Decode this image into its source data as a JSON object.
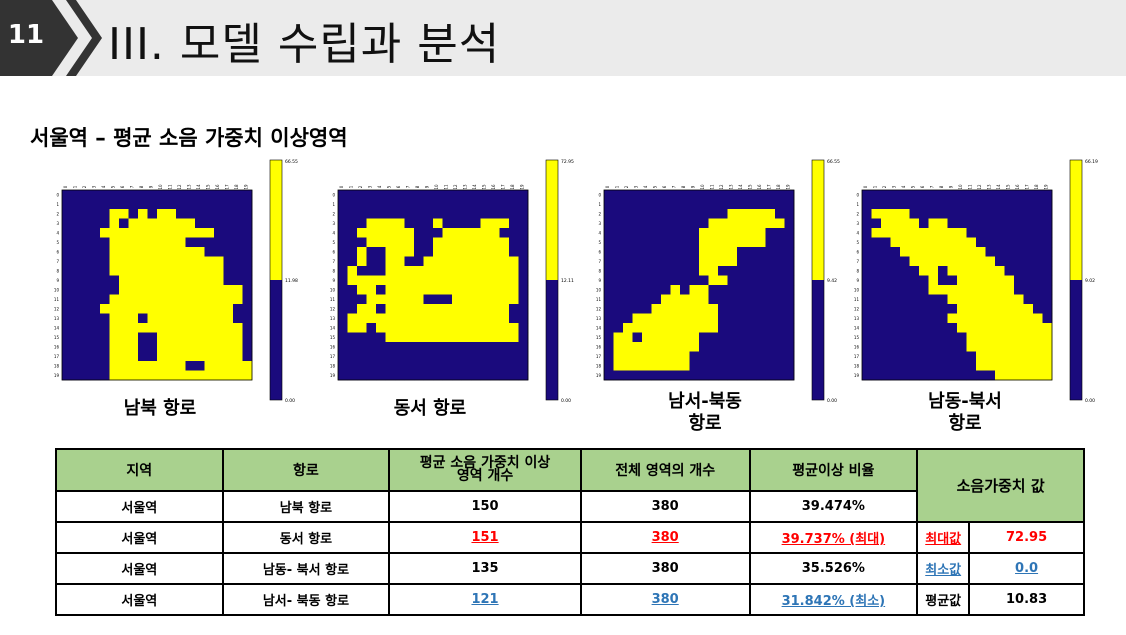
{
  "header": {
    "slide_number": "11",
    "title": "III. 모델 수립과 분석"
  },
  "section_title": "서울역 – 평균 소음 가중치 이상영역",
  "colors": {
    "high": "#ffff00",
    "low": "#1a0a7d",
    "header_fill": "#a9d18e",
    "max_color": "#ff0000",
    "min_color": "#2e75b6"
  },
  "heatmaps": [
    {
      "label": "남북 항로",
      "cb_max": "66.55",
      "cb_mid": "11.98",
      "cb_min": "0.00",
      "mid_frac": 0.5,
      "rows": [
        "00000000000000000000",
        "00000000000000000000",
        "00000110101100000000",
        "00000101111111000000",
        "00001111111111110000",
        "00000111111110000000",
        "00000111111111100000",
        "00000111111111111000",
        "00000111111111111000",
        "00000011111111111000",
        "00000011111111111110",
        "00000111111111111110",
        "00001111111111111100",
        "00000111011111111100",
        "00000111111111111110",
        "00000111001111111110",
        "00000111001111111110",
        "00000111001111111110",
        "00000111111110011111",
        "00000111111111111111"
      ]
    },
    {
      "label": "동서 항로",
      "cb_max": "72.95",
      "cb_mid": "12.11",
      "cb_min": "0.00",
      "mid_frac": 0.5,
      "rows": [
        "00000000000000000000",
        "00000000000000000000",
        "00000000000000000000",
        "00011110001000011100",
        "00111111000111111000",
        "00011111001111111100",
        "00100111001111111100",
        "00100110011111111110",
        "01000111111111111110",
        "01111111111111111110",
        "00110111111111111110",
        "00011111100011111110",
        "00110111111111111100",
        "01111111111111111100",
        "01101111111111111110",
        "00000111111111111110",
        "00000000000000000000",
        "00000000000000000000",
        "00000000000000000000",
        "00000000000000000000"
      ]
    },
    {
      "label": "남서-북동\n항로",
      "cb_max": "66.55",
      "cb_mid": "9.42",
      "cb_min": "0.00",
      "mid_frac": 0.5,
      "rows": [
        "00000000000000000000",
        "00000000000000000000",
        "00000000000001111100",
        "00000000000111111110",
        "00000000001111111000",
        "00000000001111111000",
        "00000000001111000000",
        "00000000001111000000",
        "00000000001100000000",
        "00000000000110000000",
        "00000001011000000000",
        "00000011111000000000",
        "00000111111100000000",
        "00011111111100000000",
        "00111111111100000000",
        "01101111110000000000",
        "01111111110000000000",
        "01111111100000000000",
        "01111111100000000000",
        "00000000000000000000"
      ]
    },
    {
      "label": "남동-북서\n항로",
      "cb_max": "66.19",
      "cb_mid": "9.02",
      "cb_min": "0.00",
      "mid_frac": 0.5,
      "rows": [
        "00000000000000000000",
        "00000000000000000000",
        "01111000000000000000",
        "00111101100000000000",
        "01111111111000000000",
        "00011111111100000000",
        "00001111111110000000",
        "00000111111111000000",
        "00000011011111100000",
        "00000001001111110000",
        "00000001111111110000",
        "00000000011111111000",
        "00000000001111111100",
        "00000000011111111110",
        "00000000001111111111",
        "00000000000111111111",
        "00000000000111111111",
        "00000000000011111111",
        "00000000000011111111",
        "00000000000000111111"
      ]
    }
  ],
  "table": {
    "headers": [
      "지역",
      "항로",
      "평균 소음 가중치 이상\n영역 개수",
      "전체 영역의 개수",
      "평균이상 비율",
      "소음가중치 값"
    ],
    "rows": [
      {
        "region": "서울역",
        "route": "남북 항로",
        "count": "150",
        "total": "380",
        "ratio": "39.474%",
        "w_label": "",
        "w_value": ""
      },
      {
        "region": "서울역",
        "route": "동서 항로",
        "count": "151",
        "total": "380",
        "ratio": "39.737% (최대)",
        "w_label": "최대값",
        "w_value": "72.95"
      },
      {
        "region": "서울역",
        "route": "남동- 북서 항로",
        "count": "135",
        "total": "380",
        "ratio": "35.526%",
        "w_label": "최소값",
        "w_value": "0.0"
      },
      {
        "region": "서울역",
        "route": "남서- 북동 항로",
        "count": "121",
        "total": "380",
        "ratio": "31.842% (최소)",
        "w_label": "평균값",
        "w_value": "10.83"
      }
    ]
  }
}
